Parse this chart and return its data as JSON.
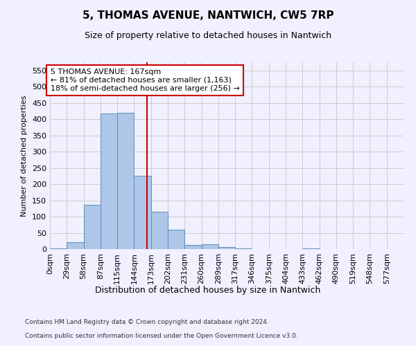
{
  "title1": "5, THOMAS AVENUE, NANTWICH, CW5 7RP",
  "title2": "Size of property relative to detached houses in Nantwich",
  "xlabel": "Distribution of detached houses by size in Nantwich",
  "ylabel": "Number of detached properties",
  "footnote1": "Contains HM Land Registry data © Crown copyright and database right 2024.",
  "footnote2": "Contains public sector information licensed under the Open Government Licence v3.0.",
  "bin_labels": [
    "0sqm",
    "29sqm",
    "58sqm",
    "87sqm",
    "115sqm",
    "144sqm",
    "173sqm",
    "202sqm",
    "231sqm",
    "260sqm",
    "289sqm",
    "317sqm",
    "346sqm",
    "375sqm",
    "404sqm",
    "433sqm",
    "462sqm",
    "490sqm",
    "519sqm",
    "548sqm",
    "577sqm"
  ],
  "bar_values": [
    3,
    21,
    136,
    417,
    419,
    226,
    116,
    59,
    12,
    14,
    7,
    2,
    0,
    1,
    0,
    3,
    0,
    0,
    1,
    0,
    1
  ],
  "bar_color": "#aec6e8",
  "bar_edge_color": "#5b8db8",
  "ylim": [
    0,
    575
  ],
  "yticks": [
    0,
    50,
    100,
    150,
    200,
    250,
    300,
    350,
    400,
    450,
    500,
    550
  ],
  "property_line_x": 167,
  "bin_width": 29,
  "annotation_text1": "5 THOMAS AVENUE: 167sqm",
  "annotation_text2": "← 81% of detached houses are smaller (1,163)",
  "annotation_text3": "18% of semi-detached houses are larger (256) →",
  "annotation_box_color": "#ffffff",
  "annotation_border_color": "#cc0000",
  "vline_color": "#cc0000",
  "grid_color": "#cccccc",
  "background_color": "#f0f0ff",
  "title1_fontsize": 11,
  "title2_fontsize": 9,
  "ylabel_fontsize": 8,
  "xlabel_fontsize": 9,
  "tick_fontsize": 8,
  "ann_fontsize": 8,
  "footnote_fontsize": 6.5
}
